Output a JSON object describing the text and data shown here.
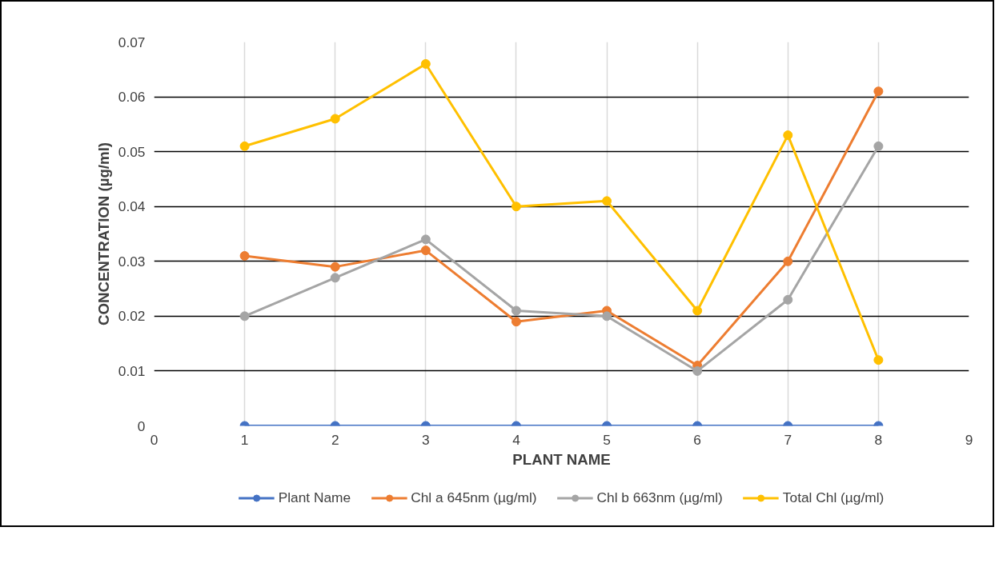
{
  "chart_data": {
    "type": "line",
    "xlabel": "PLANT NAME",
    "ylabel": "CONCENTRATION (µg/ml)",
    "x": [
      1,
      2,
      3,
      4,
      5,
      6,
      7,
      8
    ],
    "series": [
      {
        "name": "Plant Name",
        "color": "#4472c4",
        "values": [
          0,
          0,
          0,
          0,
          0,
          0,
          0,
          0
        ]
      },
      {
        "name": "Chl a 645nm (µg/ml)",
        "color": "#ed7d31",
        "values": [
          0.031,
          0.029,
          0.032,
          0.019,
          0.021,
          0.011,
          0.03,
          0.061
        ]
      },
      {
        "name": "Chl b 663nm (µg/ml)",
        "color": "#a5a5a5",
        "values": [
          0.02,
          0.027,
          0.034,
          0.021,
          0.02,
          0.01,
          0.023,
          0.051
        ]
      },
      {
        "name": "Total Chl (µg/ml)",
        "color": "#ffc000",
        "values": [
          0.051,
          0.056,
          0.066,
          0.04,
          0.041,
          0.021,
          0.053,
          0.012
        ]
      }
    ],
    "xlim": [
      0,
      9
    ],
    "xticks": [
      0,
      1,
      2,
      3,
      4,
      5,
      6,
      7,
      8,
      9
    ],
    "ylim": [
      0,
      0.07
    ],
    "yticks": [
      0,
      0.01,
      0.02,
      0.03,
      0.04,
      0.05,
      0.06,
      0.07
    ],
    "grid": true,
    "legend": "bottom",
    "marker": "circle",
    "line_style": "solid"
  }
}
